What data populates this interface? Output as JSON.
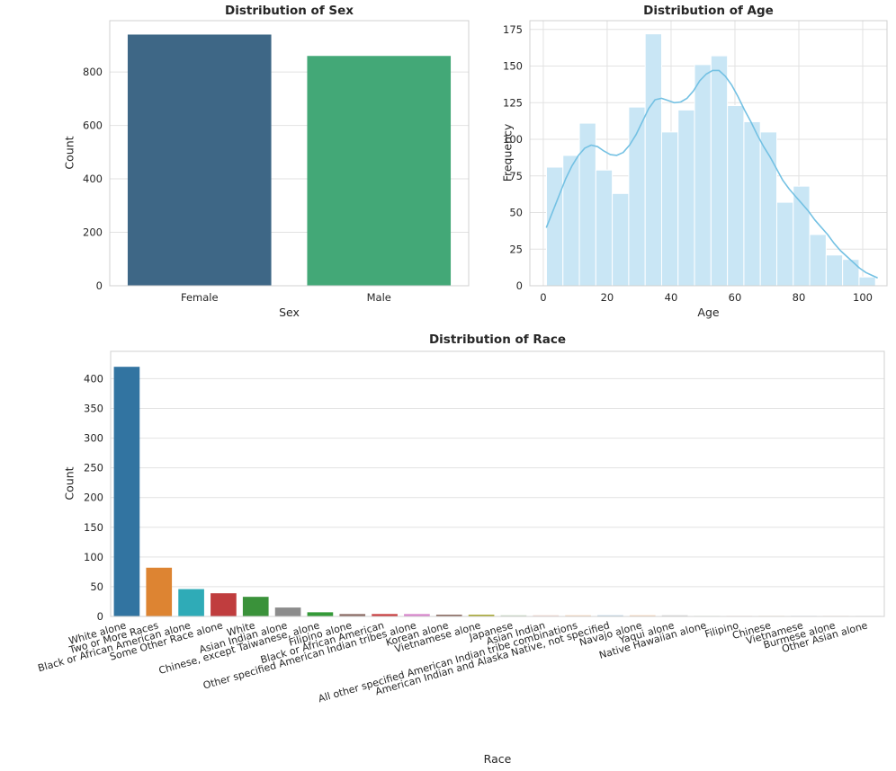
{
  "figure": {
    "background": "#ffffff",
    "grid_color": "#e2e2e2",
    "spine_color": "#d0d0d0",
    "text_color": "#262626"
  },
  "chart_data": [
    {
      "type": "bar",
      "title": "Distribution of Sex",
      "xlabel": "Sex",
      "ylabel": "Count",
      "categories": [
        "Female",
        "Male"
      ],
      "values": [
        940,
        860
      ],
      "bar_colors": [
        "#3e6786",
        "#43a877"
      ],
      "yticks": [
        0,
        200,
        400,
        600,
        800
      ],
      "ylim": [
        0,
        992
      ],
      "grid": "horizontal",
      "legend": "none"
    },
    {
      "type": "histogram",
      "title": "Distribution of Age",
      "xlabel": "Age",
      "ylabel": "Frequency",
      "bin_start": 1,
      "bin_width": 5.15,
      "bin_counts": [
        81,
        89,
        111,
        79,
        63,
        122,
        172,
        105,
        120,
        151,
        157,
        123,
        112,
        105,
        57,
        68,
        35,
        21,
        18,
        6
      ],
      "bar_color": "#c9e6f5",
      "bar_edge_color": "#ffffff",
      "kde_color": "#74c1e3",
      "kde_points": [
        [
          1,
          40
        ],
        [
          3,
          51
        ],
        [
          5,
          62
        ],
        [
          7,
          73
        ],
        [
          9,
          82
        ],
        [
          11,
          89
        ],
        [
          13,
          94
        ],
        [
          15,
          96
        ],
        [
          17,
          95
        ],
        [
          19,
          92
        ],
        [
          21,
          89.5
        ],
        [
          23,
          89
        ],
        [
          25,
          91
        ],
        [
          27,
          96
        ],
        [
          29,
          103
        ],
        [
          31,
          112
        ],
        [
          33,
          121
        ],
        [
          35,
          127
        ],
        [
          37,
          128
        ],
        [
          39,
          126.5
        ],
        [
          41,
          125
        ],
        [
          43,
          125.5
        ],
        [
          45,
          128
        ],
        [
          47,
          133
        ],
        [
          49,
          140
        ],
        [
          51,
          144.5
        ],
        [
          53,
          147
        ],
        [
          55,
          147
        ],
        [
          57,
          143
        ],
        [
          59,
          137
        ],
        [
          61,
          129
        ],
        [
          63,
          120
        ],
        [
          65,
          112
        ],
        [
          67,
          103
        ],
        [
          69,
          95
        ],
        [
          71,
          88
        ],
        [
          73,
          80
        ],
        [
          75,
          72
        ],
        [
          77,
          66
        ],
        [
          79,
          61
        ],
        [
          81,
          56
        ],
        [
          83,
          51
        ],
        [
          85,
          45
        ],
        [
          87,
          40
        ],
        [
          89,
          35
        ],
        [
          91,
          29
        ],
        [
          93,
          24
        ],
        [
          95,
          20
        ],
        [
          97,
          16
        ],
        [
          99,
          12
        ],
        [
          101,
          9
        ],
        [
          103,
          7
        ],
        [
          104.5,
          5.5
        ]
      ],
      "xticks": [
        0,
        20,
        40,
        60,
        80,
        100
      ],
      "yticks": [
        0,
        25,
        50,
        75,
        100,
        125,
        150,
        175
      ],
      "xlim": [
        -4.2,
        107.6
      ],
      "ylim": [
        0,
        181
      ],
      "grid": "both",
      "legend": "none"
    },
    {
      "type": "bar",
      "title": "Distribution of Race",
      "xlabel": "Race",
      "ylabel": "Count",
      "categories": [
        "White alone",
        "Two or More Races",
        "Black or African American alone",
        "Some Other Race alone",
        "White",
        "Asian Indian alone",
        "Chinese, except Taiwanese, alone",
        "Filipino alone",
        "Black or African American",
        "Other specified American Indian tribes alone",
        "Korean alone",
        "Vietnamese alone",
        "Japanese",
        "Asian Indian",
        "All other specified American Indian tribe combinations",
        "American Indian and Alaska Native, not specified",
        "Navajo alone",
        "Yaqui alone",
        "Native Hawaiian alone",
        "Filipino",
        "Chinese",
        "Vietnamese",
        "Burmese alone",
        "Other Asian alone"
      ],
      "values": [
        420,
        82,
        46,
        39,
        33,
        15,
        7,
        4,
        4,
        4,
        3,
        3,
        2,
        2,
        2,
        2,
        2,
        2,
        1,
        1,
        1,
        1,
        1,
        1
      ],
      "bar_colors": [
        "#3274a1",
        "#dd8432",
        "#2fabb7",
        "#c03d3e",
        "#3a923a",
        "#8c8c8c",
        "#349a38",
        "#8a6a62",
        "#c83a3c",
        "#d884cd",
        "#8a6a60",
        "#a9a934",
        "#c3d6c1",
        "#f0d4cc",
        "#f4d3b5",
        "#b9d0e0",
        "#f4d0b0",
        "#d4d4d4",
        "#dbe8d8",
        "#f6e0d2",
        "#f7e2c6",
        "#d2dfe8",
        "#f8e3cf",
        "#e6e6e6"
      ],
      "yticks": [
        0,
        50,
        100,
        150,
        200,
        250,
        300,
        350,
        400
      ],
      "ylim": [
        0,
        446
      ],
      "grid": "horizontal",
      "tick_rotation": -16,
      "legend": "none"
    }
  ]
}
